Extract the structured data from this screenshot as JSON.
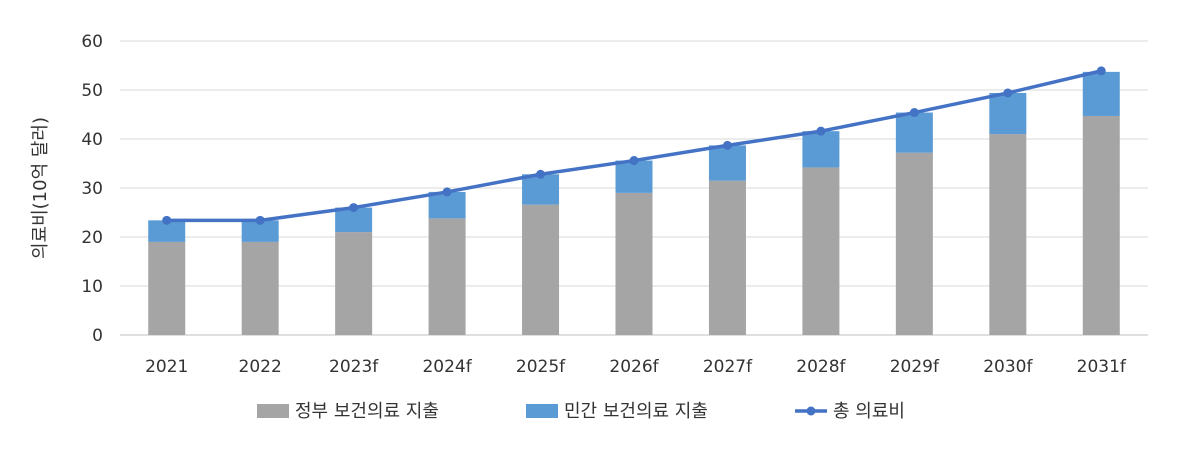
{
  "chart_data": {
    "type": "bar",
    "stacked": true,
    "title": "",
    "xlabel": "",
    "ylabel": "의료비(10억 달러)",
    "ylim": [
      0,
      60
    ],
    "yticks": [
      0,
      10,
      20,
      30,
      40,
      50,
      60
    ],
    "grid": true,
    "legend_position": "bottom",
    "categories": [
      "2021",
      "2022",
      "2023f",
      "2024f",
      "2025f",
      "2026f",
      "2027f",
      "2028f",
      "2029f",
      "2030f",
      "2031f"
    ],
    "series": [
      {
        "name": "정부 보건의료 지출",
        "kind": "bar",
        "color": "#a5a5a5",
        "values": [
          19.0,
          19.0,
          21.0,
          23.8,
          26.6,
          29.0,
          31.5,
          34.2,
          37.2,
          41.0,
          44.7
        ]
      },
      {
        "name": "민간 보건의료 지출",
        "kind": "bar",
        "color": "#5b9bd5",
        "values": [
          4.4,
          4.4,
          5.0,
          5.4,
          6.2,
          6.6,
          7.2,
          7.4,
          8.2,
          8.4,
          9.0
        ]
      },
      {
        "name": "총 의료비",
        "kind": "line",
        "color": "#4472c4",
        "values": [
          23.4,
          23.4,
          26.0,
          29.2,
          32.8,
          35.6,
          38.7,
          41.6,
          45.4,
          49.4,
          53.9
        ]
      }
    ]
  }
}
